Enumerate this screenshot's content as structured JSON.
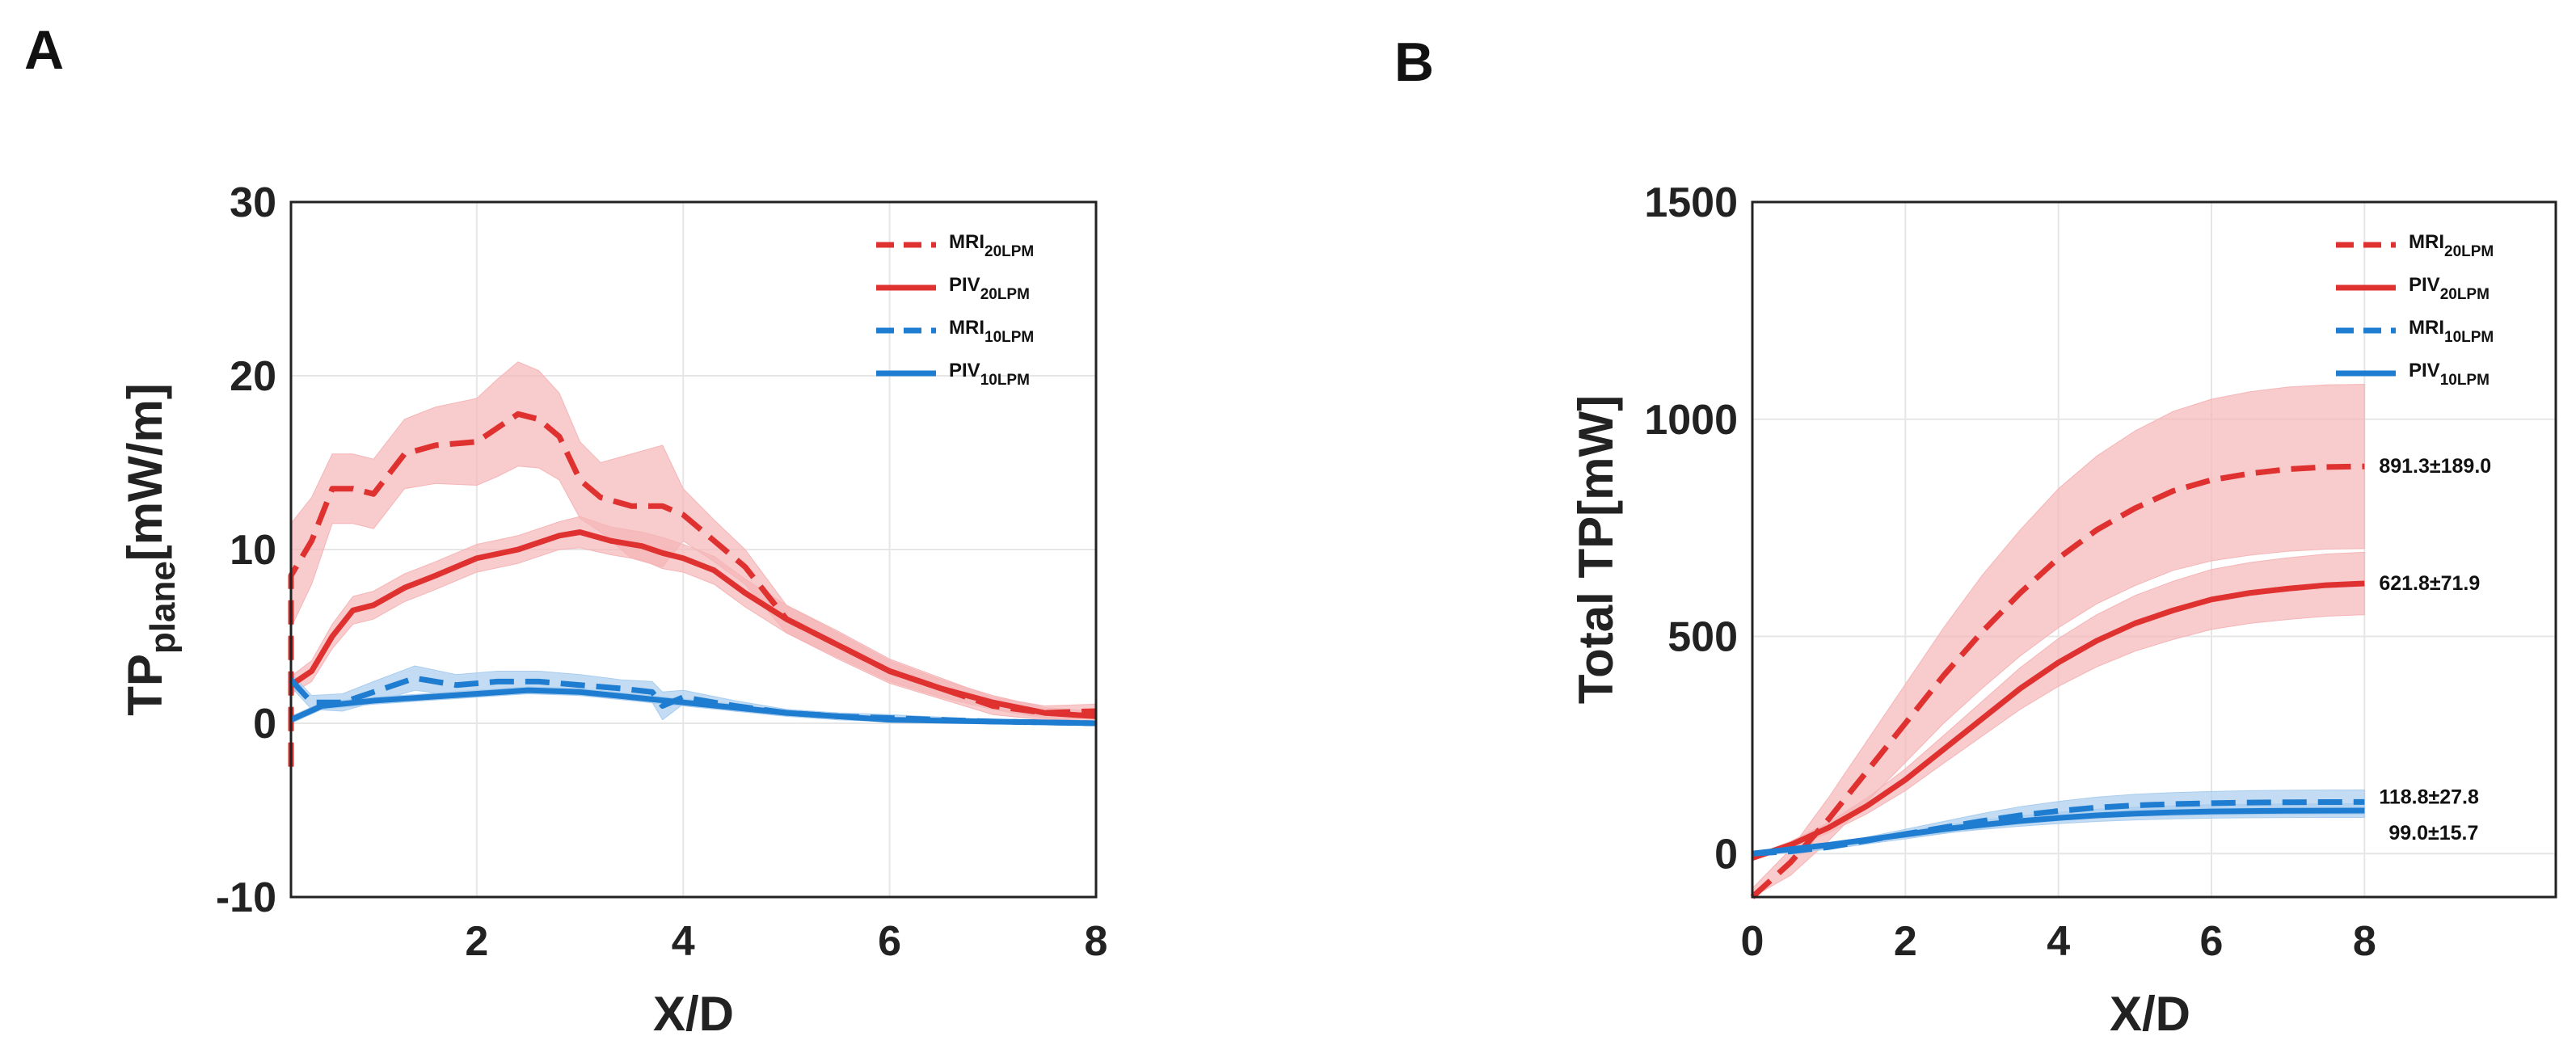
{
  "colors": {
    "red": "#e03131",
    "red_band": "#f5b5b7",
    "blue": "#1f7dd1",
    "blue_band": "#a9cdee"
  },
  "chart_data": [
    {
      "panel": "A",
      "type": "line",
      "xlabel": "X/D",
      "ylabel_main": "TP",
      "ylabel_sub": "plane",
      "ylabel_unit": "[mW/m]",
      "xlim": [
        0.2,
        8
      ],
      "ylim": [
        -10,
        30
      ],
      "xticks": [
        2,
        4,
        6,
        8
      ],
      "yticks": [
        -10,
        0,
        10,
        20,
        30
      ],
      "legend": [
        {
          "main": "MRI",
          "sub": "20LPM",
          "style": "dashed",
          "color": "red"
        },
        {
          "main": "PIV",
          "sub": "20LPM",
          "style": "solid",
          "color": "red"
        },
        {
          "main": "MRI",
          "sub": "10LPM",
          "style": "dashed",
          "color": "blue"
        },
        {
          "main": "PIV",
          "sub": "10LPM",
          "style": "solid",
          "color": "blue"
        }
      ],
      "series": [
        {
          "name": "MRI 20LPM",
          "color": "red",
          "style": "dashed",
          "x": [
            0.1,
            0.2,
            0.4,
            0.6,
            0.8,
            1.0,
            1.3,
            1.6,
            2.0,
            2.2,
            2.4,
            2.6,
            2.8,
            3.0,
            3.2,
            3.5,
            3.8,
            4.0,
            4.3,
            4.6,
            5.0,
            5.5,
            6.0,
            6.5,
            7.0,
            7.5,
            8.0
          ],
          "y": [
            -2.5,
            8.5,
            10.5,
            13.5,
            13.5,
            13.2,
            15.5,
            16.0,
            16.2,
            17.0,
            17.8,
            17.5,
            16.5,
            14.0,
            13.0,
            12.5,
            12.5,
            12.0,
            10.5,
            9.0,
            6.0,
            4.5,
            3.0,
            2.0,
            1.0,
            0.6,
            0.7
          ],
          "band": [
            2.0,
            3.0,
            2.5,
            2.0,
            2.0,
            2.0,
            2.0,
            2.2,
            2.5,
            2.8,
            3.0,
            2.8,
            2.5,
            2.2,
            2.0,
            3.0,
            3.5,
            1.5,
            1.2,
            1.0,
            0.8,
            0.8,
            0.7,
            0.6,
            0.5,
            0.4,
            0.4
          ]
        },
        {
          "name": "PIV 20LPM",
          "color": "red",
          "style": "solid",
          "x": [
            0.2,
            0.4,
            0.6,
            0.8,
            1.0,
            1.3,
            1.6,
            2.0,
            2.4,
            2.8,
            3.0,
            3.3,
            3.6,
            3.8,
            4.0,
            4.3,
            4.6,
            5.0,
            5.5,
            6.0,
            6.5,
            7.0,
            7.5,
            8.0
          ],
          "y": [
            2.2,
            3.0,
            5.0,
            6.5,
            6.8,
            7.8,
            8.5,
            9.5,
            10.0,
            10.8,
            11.0,
            10.5,
            10.2,
            9.8,
            9.5,
            8.8,
            7.5,
            6.0,
            4.5,
            3.0,
            2.0,
            1.2,
            0.6,
            0.4
          ],
          "band": [
            0.5,
            0.6,
            0.7,
            0.8,
            0.8,
            0.8,
            0.8,
            0.8,
            0.8,
            0.8,
            0.9,
            0.8,
            0.8,
            0.9,
            0.8,
            0.8,
            0.8,
            0.8,
            0.7,
            0.6,
            0.5,
            0.4,
            0.3,
            0.3
          ]
        },
        {
          "name": "MRI 10LPM",
          "color": "blue",
          "style": "dashed",
          "x": [
            0.2,
            0.4,
            0.7,
            1.0,
            1.4,
            1.8,
            2.2,
            2.6,
            3.0,
            3.4,
            3.7,
            3.8,
            4.0,
            4.5,
            5.0,
            5.5,
            6.0,
            7.0,
            8.0
          ],
          "y": [
            2.5,
            1.2,
            1.2,
            1.8,
            2.6,
            2.2,
            2.4,
            2.4,
            2.2,
            2.0,
            1.8,
            1.0,
            1.5,
            1.0,
            0.6,
            0.4,
            0.3,
            0.1,
            0.0
          ],
          "band": [
            0.4,
            0.4,
            0.5,
            0.6,
            0.7,
            0.6,
            0.6,
            0.6,
            0.6,
            0.5,
            0.6,
            0.8,
            0.4,
            0.3,
            0.2,
            0.2,
            0.2,
            0.1,
            0.1
          ]
        },
        {
          "name": "PIV 10LPM",
          "color": "blue",
          "style": "solid",
          "x": [
            0.2,
            0.5,
            1.0,
            1.5,
            2.0,
            2.5,
            3.0,
            3.5,
            4.0,
            4.5,
            5.0,
            5.5,
            6.0,
            7.0,
            8.0
          ],
          "y": [
            0.2,
            1.0,
            1.3,
            1.5,
            1.7,
            1.9,
            1.8,
            1.5,
            1.2,
            0.9,
            0.6,
            0.4,
            0.2,
            0.1,
            0.0
          ],
          "band": [
            0.2,
            0.2,
            0.2,
            0.2,
            0.2,
            0.2,
            0.2,
            0.2,
            0.2,
            0.2,
            0.1,
            0.1,
            0.1,
            0.1,
            0.1
          ]
        }
      ]
    },
    {
      "panel": "B",
      "type": "line",
      "xlabel": "X/D",
      "ylabel": "Total TP[mW]",
      "xlim": [
        0,
        10.5
      ],
      "ylim": [
        -100,
        1500
      ],
      "xticks": [
        0,
        2,
        4,
        6,
        8
      ],
      "yticks": [
        0,
        500,
        1000,
        1500
      ],
      "legend": [
        {
          "main": "MRI",
          "sub": "20LPM",
          "style": "dashed",
          "color": "red"
        },
        {
          "main": "PIV",
          "sub": "20LPM",
          "style": "solid",
          "color": "red"
        },
        {
          "main": "MRI",
          "sub": "10LPM",
          "style": "dashed",
          "color": "blue"
        },
        {
          "main": "PIV",
          "sub": "10LPM",
          "style": "solid",
          "color": "blue"
        }
      ],
      "annotations": [
        {
          "text": "891.3±189.0",
          "value": 891.3
        },
        {
          "text": "621.8±71.9",
          "value": 621.8
        },
        {
          "text": "118.8±27.8",
          "value": 118.8
        },
        {
          "text": "99.0±15.7",
          "value": 99.0
        }
      ],
      "series": [
        {
          "name": "MRI 20LPM",
          "color": "red",
          "style": "dashed",
          "x": [
            0,
            0.5,
            1,
            1.5,
            2,
            2.5,
            3,
            3.5,
            4,
            4.5,
            5,
            5.5,
            6,
            6.5,
            7,
            7.5,
            8
          ],
          "y": [
            -100,
            -20,
            80,
            190,
            300,
            410,
            510,
            600,
            680,
            745,
            795,
            835,
            860,
            875,
            885,
            890,
            891.3
          ],
          "band": [
            20,
            30,
            50,
            70,
            90,
            110,
            130,
            145,
            160,
            170,
            178,
            183,
            186,
            188,
            189,
            189,
            189
          ]
        },
        {
          "name": "PIV 20LPM",
          "color": "red",
          "style": "solid",
          "x": [
            0,
            0.5,
            1,
            1.5,
            2,
            2.5,
            3,
            3.5,
            4,
            4.5,
            5,
            5.5,
            6,
            6.5,
            7,
            7.5,
            8
          ],
          "y": [
            -10,
            20,
            60,
            110,
            170,
            240,
            310,
            380,
            440,
            490,
            530,
            560,
            585,
            600,
            610,
            618,
            621.8
          ],
          "band": [
            5,
            8,
            12,
            18,
            25,
            32,
            40,
            48,
            55,
            60,
            64,
            67,
            69,
            70,
            71,
            71.5,
            71.9
          ]
        },
        {
          "name": "MRI 10LPM",
          "color": "blue",
          "style": "dashed",
          "x": [
            0,
            0.5,
            1,
            1.5,
            2,
            2.5,
            3,
            3.5,
            4,
            4.5,
            5,
            5.5,
            6,
            6.5,
            7,
            7.5,
            8
          ],
          "y": [
            0,
            5,
            15,
            30,
            45,
            60,
            75,
            88,
            98,
            106,
            111,
            114,
            116,
            117.5,
            118.2,
            118.6,
            118.8
          ],
          "band": [
            2,
            3,
            5,
            8,
            11,
            14,
            17,
            20,
            22,
            24,
            25.5,
            26.5,
            27,
            27.4,
            27.6,
            27.7,
            27.8
          ]
        },
        {
          "name": "PIV 10LPM",
          "color": "blue",
          "style": "solid",
          "x": [
            0,
            0.5,
            1,
            1.5,
            2,
            2.5,
            3,
            3.5,
            4,
            4.5,
            5,
            5.5,
            6,
            6.5,
            7,
            7.5,
            8
          ],
          "y": [
            0,
            10,
            20,
            32,
            44,
            56,
            66,
            75,
            82,
            88,
            92,
            95,
            97,
            98,
            98.6,
            98.9,
            99.0
          ],
          "band": [
            1,
            2,
            3,
            5,
            7,
            9,
            10.5,
            12,
            13,
            14,
            14.6,
            15,
            15.3,
            15.5,
            15.6,
            15.7,
            15.7
          ]
        }
      ]
    }
  ]
}
